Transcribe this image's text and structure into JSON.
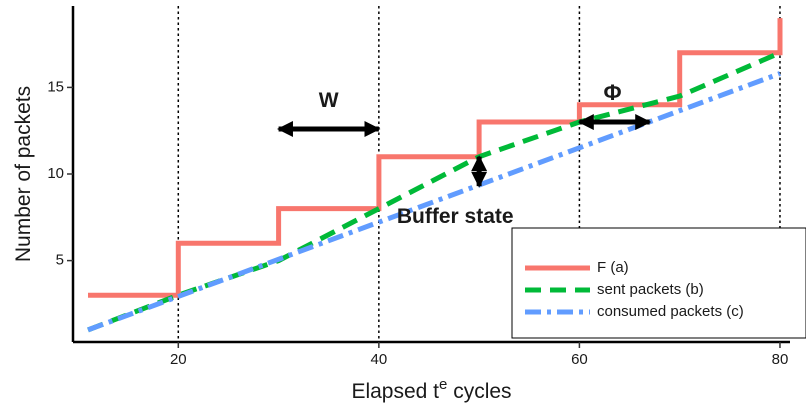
{
  "chart_data": {
    "type": "line",
    "xlabel": "Elapsed  t",
    "xlabel_superscript": "e",
    "xlabel_suffix": " cycles",
    "ylabel": "Number of packets",
    "xlim": [
      9.5,
      81
    ],
    "ylim": [
      0.3,
      19.7
    ],
    "x_ticks": [
      20,
      40,
      60,
      80
    ],
    "y_ticks": [
      5,
      10,
      15
    ],
    "grid": false,
    "vlines": [
      20,
      40,
      60,
      80
    ],
    "legend_position": "bottom-right",
    "series": [
      {
        "name": "F (a)",
        "color": "#F8766D",
        "dash": "solid",
        "step": true,
        "points": [
          [
            11,
            3
          ],
          [
            20,
            3
          ],
          [
            20,
            6
          ],
          [
            30,
            6
          ],
          [
            30,
            8
          ],
          [
            40,
            8
          ],
          [
            40,
            11
          ],
          [
            50,
            11
          ],
          [
            50,
            13
          ],
          [
            60,
            13
          ],
          [
            60,
            14
          ],
          [
            70,
            14
          ],
          [
            70,
            17
          ],
          [
            80,
            17
          ],
          [
            80,
            19
          ]
        ]
      },
      {
        "name": "sent packets (b)",
        "color": "#00BA38",
        "dash": "long-dash",
        "step": false,
        "points": [
          [
            11,
            1
          ],
          [
            20,
            3
          ],
          [
            30,
            5
          ],
          [
            40,
            8
          ],
          [
            50,
            11
          ],
          [
            60,
            13
          ],
          [
            70,
            14.5
          ],
          [
            80,
            17
          ]
        ]
      },
      {
        "name": "consumed packets (c)",
        "color": "#619CFF",
        "dash": "dot-dash",
        "step": false,
        "points": [
          [
            11,
            1
          ],
          [
            80,
            15.8
          ]
        ]
      }
    ],
    "annotations": [
      {
        "label": "W",
        "type": "h-double-arrow",
        "from": [
          30,
          12.6
        ],
        "to": [
          40,
          12.6
        ],
        "label_at": [
          35,
          14.2
        ]
      },
      {
        "label": "Φ",
        "type": "h-double-arrow",
        "from": [
          60,
          13
        ],
        "to": [
          67,
          13
        ],
        "label_at": [
          63.3,
          14.6
        ]
      },
      {
        "label": "Buffer state",
        "type": "v-double-arrow",
        "from": [
          50,
          11
        ],
        "to": [
          50,
          9.3
        ],
        "label_at": [
          41.8,
          7.5
        ]
      }
    ]
  }
}
